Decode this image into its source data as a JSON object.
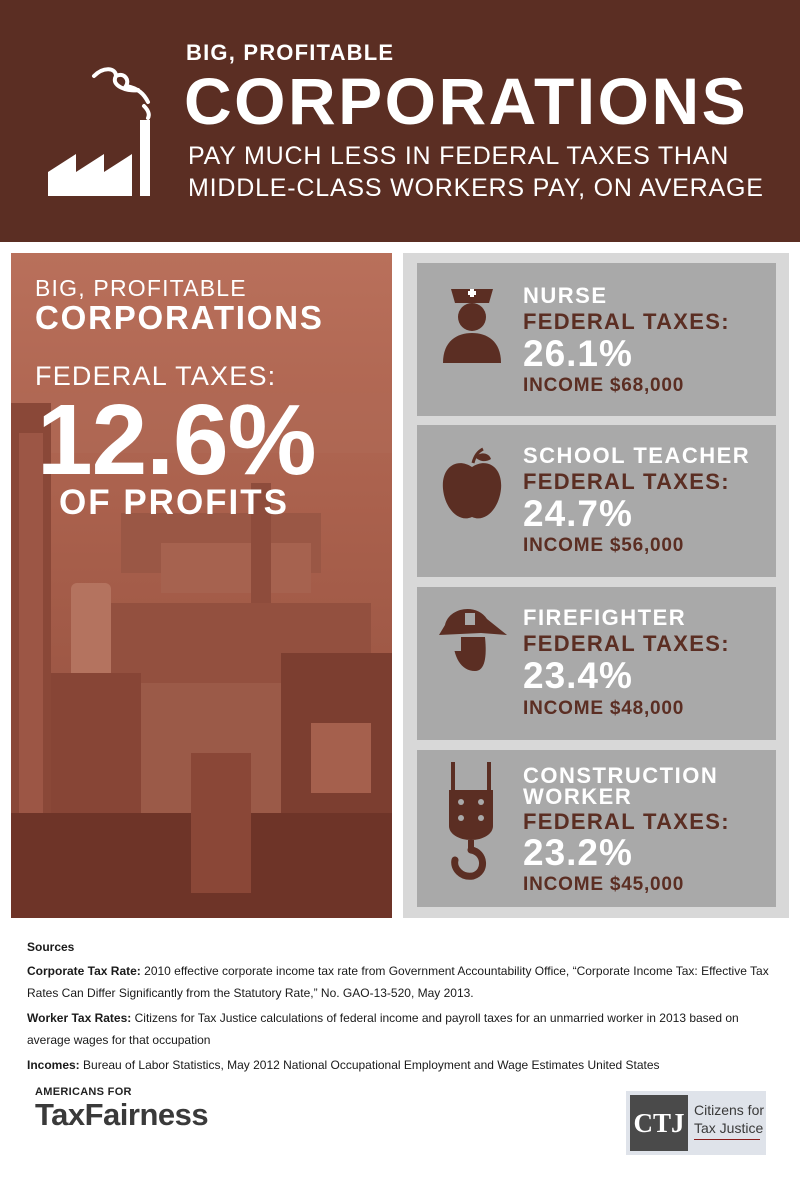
{
  "header": {
    "subtitle": "BIG, PROFITABLE",
    "title": "CORPORATIONS",
    "line1": "PAY MUCH LESS IN FEDERAL TAXES THAN",
    "line2": "MIDDLE-CLASS WORKERS PAY, ON AVERAGE"
  },
  "corporations": {
    "subtitle": "BIG, PROFITABLE",
    "title": "CORPORATIONS",
    "tax_label": "FEDERAL TAXES:",
    "percent": "12.6%",
    "of_profits": "OF PROFITS"
  },
  "workers": [
    {
      "job": "NURSE",
      "tax_label": "FEDERAL TAXES:",
      "percent": "26.1%",
      "income": "INCOME $68,000",
      "icon": "nurse-icon"
    },
    {
      "job": "SCHOOL TEACHER",
      "tax_label": "FEDERAL TAXES:",
      "percent": "24.7%",
      "income": "INCOME $56,000",
      "icon": "apple-icon"
    },
    {
      "job": "FIREFIGHTER",
      "tax_label": "FEDERAL TAXES:",
      "percent": "23.4%",
      "income": "INCOME $48,000",
      "icon": "firefighter-icon"
    },
    {
      "job_line1": "CONSTRUCTION",
      "job_line2": "WORKER",
      "tax_label": "FEDERAL TAXES:",
      "percent": "23.2%",
      "income": "INCOME $45,000",
      "icon": "crane-hook-icon"
    }
  ],
  "sources": {
    "title": "Sources",
    "corporate_label": "Corporate Tax Rate:",
    "corporate_text": "2010 effective corporate income tax rate from Government Accountability Office, “Corporate Income Tax: Effective Tax Rates Can Differ Significantly from the Statutory Rate,” No. GAO-13-520, May 2013.",
    "worker_label": "Worker Tax Rates:",
    "worker_text": "Citizens for Tax Justice calculations of federal income and payroll taxes for an unmarried worker in 2013 based on average wages for that occupation",
    "incomes_label": "Incomes:",
    "incomes_text": "Bureau of Labor Statistics, May 2012 National Occupational Employment and Wage Estimates United States"
  },
  "logos": {
    "atf_line1": "AMERICANS FOR",
    "atf_line2a": "Tax",
    "atf_line2b": "Fairness",
    "ctj_abbr": "CTJ",
    "ctj_line1": "Citizens for",
    "ctj_line2": "Tax Justice"
  },
  "colors": {
    "header_bg": "#5b2e23",
    "panel_copper": "#a9604c",
    "card_gray": "#a9a9a9",
    "accent_brown": "#5b2e23"
  }
}
